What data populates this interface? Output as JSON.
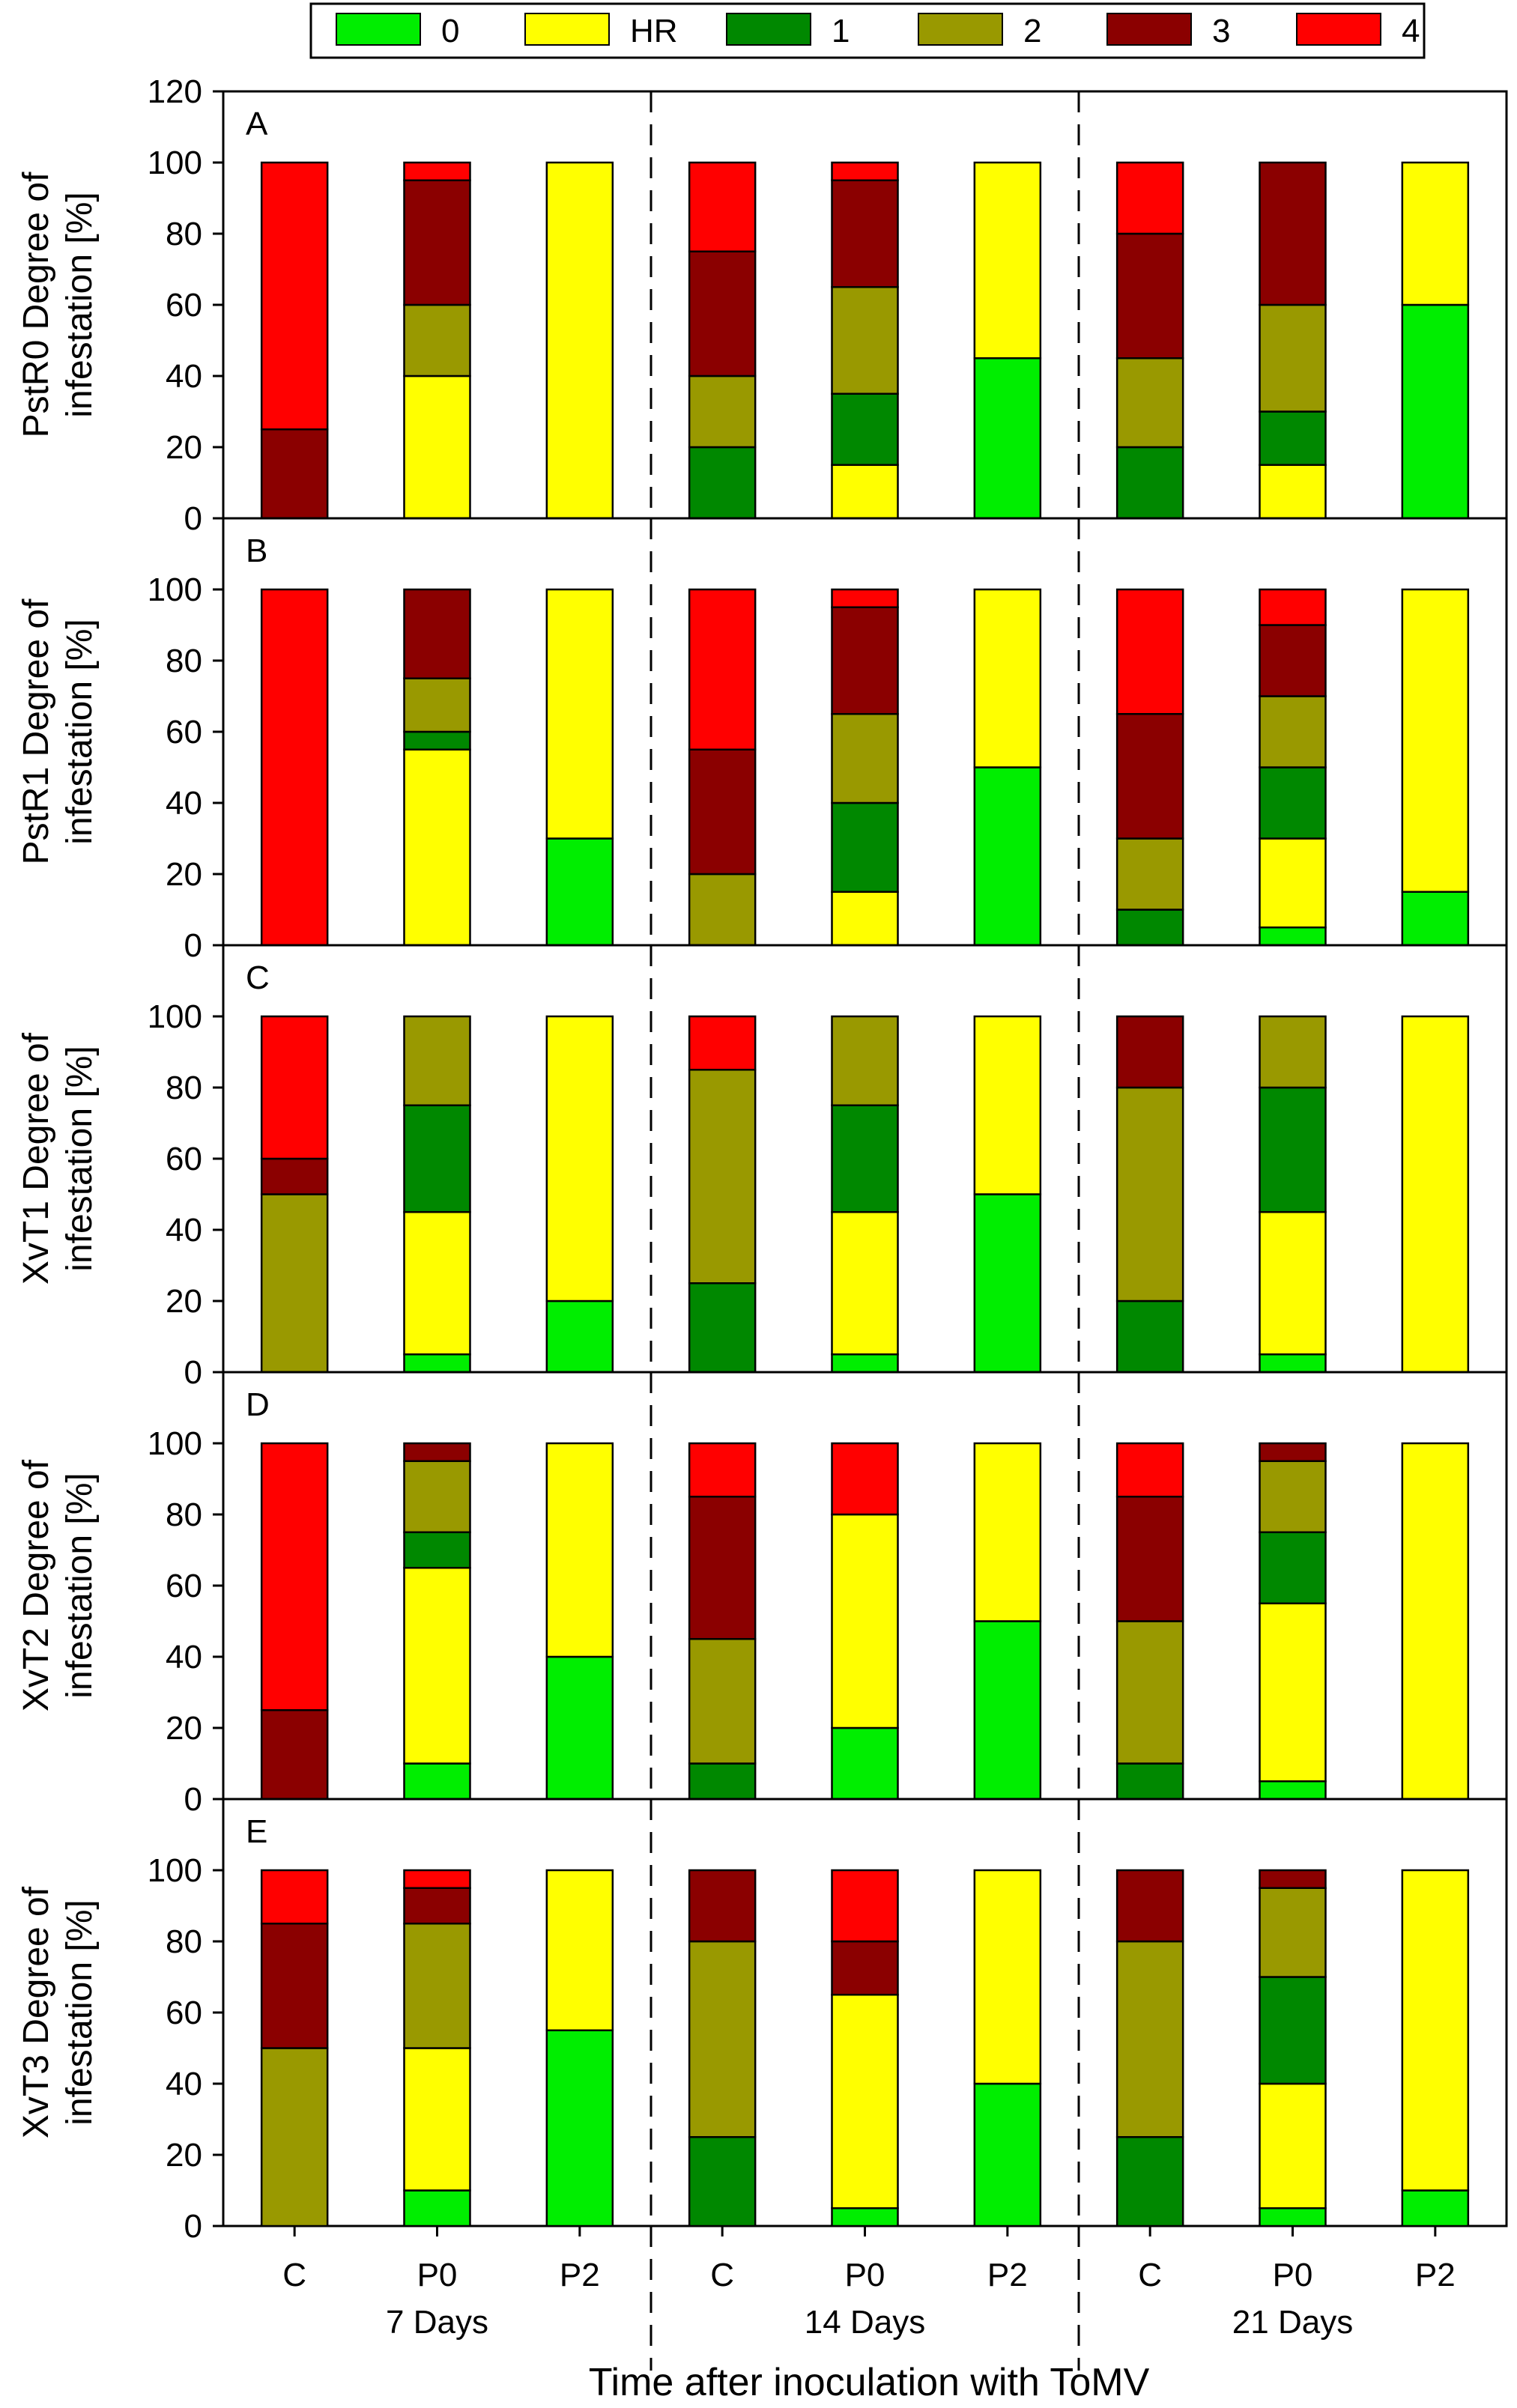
{
  "chart_data": {
    "type": "bar",
    "stacked": true,
    "legend": {
      "placement": "top-center",
      "entries": [
        {
          "key": "0",
          "label": "0",
          "color": "#00ee00"
        },
        {
          "key": "HR",
          "label": "HR",
          "color": "#ffff00"
        },
        {
          "key": "1",
          "label": "1",
          "color": "#008800"
        },
        {
          "key": "2",
          "label": "2",
          "color": "#999900"
        },
        {
          "key": "3",
          "label": "3",
          "color": "#8b0000"
        },
        {
          "key": "4",
          "label": "4",
          "color": "#ff0000"
        }
      ]
    },
    "x_title": "Time after inoculation with ToMV",
    "groups": [
      {
        "label": "7 Days",
        "categories": [
          "C",
          "P0",
          "P2"
        ]
      },
      {
        "label": "14 Days",
        "categories": [
          "C",
          "P0",
          "P2"
        ]
      },
      {
        "label": "21 Days",
        "categories": [
          "C",
          "P0",
          "P2"
        ]
      }
    ],
    "y_ticks": [
      0,
      20,
      40,
      60,
      80,
      100,
      120
    ],
    "panels": [
      {
        "letter": "A",
        "ylabel_line1": "PstR0 Degree of",
        "ylabel_line2": "infestation [%]",
        "ylim": [
          0,
          120
        ],
        "show_top_tick": true,
        "bars": [
          [
            0,
            0,
            0,
            0,
            25,
            75
          ],
          [
            0,
            40,
            0,
            20,
            35,
            5
          ],
          [
            0,
            100,
            0,
            0,
            0,
            0
          ],
          [
            0,
            0,
            20,
            20,
            35,
            25
          ],
          [
            0,
            15,
            20,
            30,
            30,
            5
          ],
          [
            45,
            55,
            0,
            0,
            0,
            0
          ],
          [
            0,
            0,
            20,
            25,
            35,
            20
          ],
          [
            0,
            15,
            15,
            30,
            40,
            0
          ],
          [
            60,
            40,
            0,
            0,
            0,
            0
          ]
        ]
      },
      {
        "letter": "B",
        "ylabel_line1": "PstR1 Degree of",
        "ylabel_line2": "infestation [%]",
        "ylim": [
          0,
          120
        ],
        "show_top_tick": false,
        "bars": [
          [
            0,
            0,
            0,
            0,
            0,
            100
          ],
          [
            0,
            55,
            5,
            15,
            25,
            0
          ],
          [
            30,
            70,
            0,
            0,
            0,
            0
          ],
          [
            0,
            0,
            0,
            20,
            35,
            45
          ],
          [
            0,
            15,
            25,
            25,
            30,
            5
          ],
          [
            50,
            50,
            0,
            0,
            0,
            0
          ],
          [
            0,
            0,
            10,
            20,
            35,
            35
          ],
          [
            5,
            25,
            20,
            20,
            20,
            10
          ],
          [
            15,
            85,
            0,
            0,
            0,
            0
          ]
        ]
      },
      {
        "letter": "C",
        "ylabel_line1": "XvT1 Degree of",
        "ylabel_line2": "infestation [%]",
        "ylim": [
          0,
          120
        ],
        "show_top_tick": false,
        "bars": [
          [
            0,
            0,
            0,
            50,
            10,
            40
          ],
          [
            5,
            40,
            30,
            25,
            0,
            0
          ],
          [
            20,
            80,
            0,
            0,
            0,
            0
          ],
          [
            0,
            0,
            25,
            60,
            0,
            15
          ],
          [
            5,
            40,
            30,
            25,
            0,
            0
          ],
          [
            50,
            50,
            0,
            0,
            0,
            0
          ],
          [
            0,
            0,
            20,
            60,
            20,
            0
          ],
          [
            5,
            40,
            35,
            20,
            0,
            0
          ],
          [
            0,
            100,
            0,
            0,
            0,
            0
          ]
        ]
      },
      {
        "letter": "D",
        "ylabel_line1": "XvT2 Degree of",
        "ylabel_line2": "infestation [%]",
        "ylim": [
          0,
          120
        ],
        "show_top_tick": false,
        "bars": [
          [
            0,
            0,
            0,
            0,
            25,
            75
          ],
          [
            10,
            55,
            10,
            20,
            5,
            0
          ],
          [
            40,
            60,
            0,
            0,
            0,
            0
          ],
          [
            0,
            0,
            10,
            35,
            40,
            15
          ],
          [
            20,
            60,
            0,
            0,
            0,
            20
          ],
          [
            50,
            50,
            0,
            0,
            0,
            0
          ],
          [
            0,
            0,
            10,
            40,
            35,
            15
          ],
          [
            5,
            50,
            20,
            20,
            5,
            0
          ],
          [
            0,
            100,
            0,
            0,
            0,
            0
          ]
        ]
      },
      {
        "letter": "E",
        "ylabel_line1": "XvT3 Degree of",
        "ylabel_line2": "infestation [%]",
        "ylim": [
          0,
          120
        ],
        "show_top_tick": false,
        "bars": [
          [
            0,
            0,
            0,
            50,
            35,
            15
          ],
          [
            10,
            40,
            0,
            35,
            10,
            5
          ],
          [
            55,
            45,
            0,
            0,
            0,
            0
          ],
          [
            0,
            0,
            25,
            55,
            20,
            0
          ],
          [
            5,
            60,
            0,
            0,
            15,
            20
          ],
          [
            40,
            60,
            0,
            0,
            0,
            0
          ],
          [
            0,
            0,
            25,
            55,
            20,
            0
          ],
          [
            5,
            35,
            30,
            25,
            5,
            0
          ],
          [
            10,
            90,
            0,
            0,
            0,
            0
          ]
        ]
      }
    ]
  }
}
